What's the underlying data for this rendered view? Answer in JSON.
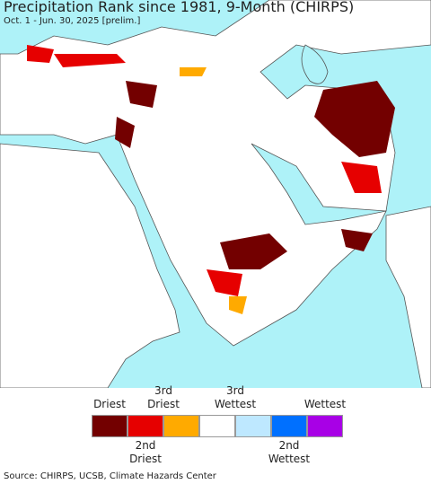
{
  "header": {
    "title": "Precipitation Rank since 1981, 9-Month (CHIRPS)",
    "subtitle": "Oct. 1 - Jun. 30, 2025 [prelim.]"
  },
  "legend": {
    "colors": [
      "#730000",
      "#e60000",
      "#ffaa00",
      "#ffffff",
      "#bee8ff",
      "#0070ff",
      "#a800e6"
    ],
    "top_labels": [
      {
        "lines": [
          "Driest"
        ]
      },
      {
        "lines": [
          "3rd",
          "Driest"
        ]
      },
      {
        "lines": [
          "3rd",
          "Wettest"
        ]
      },
      {
        "lines": [
          "Wettest"
        ]
      }
    ],
    "bottom_labels": [
      {
        "lines": [
          "2nd",
          "Driest"
        ]
      },
      {
        "lines": [
          "2nd",
          "Wettest"
        ]
      }
    ]
  },
  "footer": {
    "source": "Source: CHIRPS, UCSB, Climate Hazards Center"
  }
}
